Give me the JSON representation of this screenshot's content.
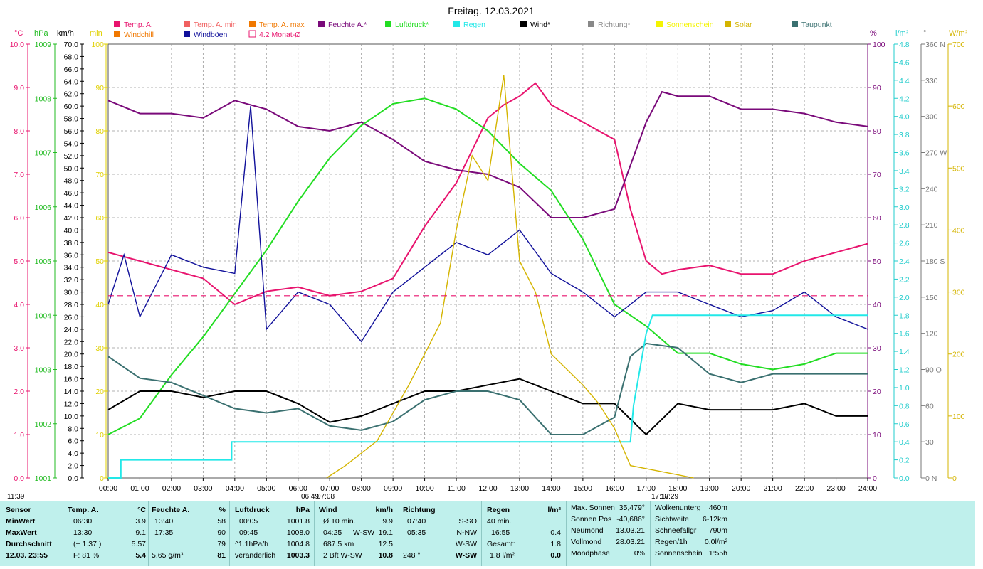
{
  "title": "Freitag. 12.03.2021",
  "legend": [
    {
      "label": "Temp. A.",
      "color": "#e8146e"
    },
    {
      "label": "Temp. A. min",
      "color": "#f06060"
    },
    {
      "label": "Temp. A. max",
      "color": "#f07800"
    },
    {
      "label": "Feuchte A.*",
      "color": "#7a0a7a"
    },
    {
      "label": "Luftdruck*",
      "color": "#22dd22"
    },
    {
      "label": "Regen",
      "color": "#22e8e8"
    },
    {
      "label": "Wind*",
      "color": "#000000"
    },
    {
      "label": "Richtung*",
      "color": "#888888"
    },
    {
      "label": "Sonnenschein",
      "color": "#f4f400"
    },
    {
      "label": "Solar",
      "color": "#d4b400"
    },
    {
      "label": "Taupunkt",
      "color": "#3a7070"
    },
    {
      "label": "Windchill",
      "color": "#f07800"
    },
    {
      "label": "Windböen",
      "color": "#10109a"
    },
    {
      "label": "4.2 Monat-Ø",
      "color": "#e8146e"
    }
  ],
  "units": {
    "temp": "°C",
    "press": "hPa",
    "wind": "km/h",
    "sun": "min",
    "hum": "%",
    "rain": "l/m²",
    "dir": "°",
    "solar": "W/m²"
  },
  "axes": {
    "temp_ticks": [
      "10.0",
      "9.0",
      "8.0",
      "7.0",
      "6.0",
      "5.0",
      "4.0",
      "3.0",
      "2.0",
      "1.0",
      "0.0"
    ],
    "press_ticks": [
      "1009",
      "1008",
      "1007",
      "1006",
      "1005",
      "1004",
      "1003",
      "1002",
      "1001"
    ],
    "wind_ticks": [
      "70.0",
      "68.0",
      "66.0",
      "64.0",
      "62.0",
      "60.0",
      "58.0",
      "56.0",
      "54.0",
      "52.0",
      "50.0",
      "48.0",
      "46.0",
      "44.0",
      "42.0",
      "40.0",
      "38.0",
      "36.0",
      "34.0",
      "32.0",
      "30.0",
      "28.0",
      "26.0",
      "24.0",
      "22.0",
      "20.0",
      "18.0",
      "16.0",
      "14.0",
      "12.0",
      "10.0",
      "8.0",
      "6.0",
      "4.0",
      "2.0",
      "0.0"
    ],
    "sun_ticks": [
      "100",
      "90",
      "80",
      "70",
      "60",
      "50",
      "40",
      "30",
      "20",
      "10",
      "0"
    ],
    "hum_ticks": [
      "100",
      "90",
      "80",
      "70",
      "60",
      "50",
      "40",
      "30",
      "20",
      "10",
      "0"
    ],
    "rain_ticks": [
      "4.8",
      "4.6",
      "4.4",
      "4.2",
      "4.0",
      "3.8",
      "3.6",
      "3.4",
      "3.2",
      "3.0",
      "2.8",
      "2.6",
      "2.4",
      "2.2",
      "2.0",
      "1.8",
      "1.6",
      "1.4",
      "1.2",
      "1.0",
      "0.8",
      "0.6",
      "0.4",
      "0.2",
      "0.0"
    ],
    "dir_ticks": [
      "360 N",
      "330",
      "300",
      "270 W",
      "240",
      "210",
      "180 S",
      "150",
      "120",
      "90 O",
      "60",
      "30",
      "0 N"
    ],
    "solar_ticks": [
      "700",
      "600",
      "500",
      "400",
      "300",
      "200",
      "100",
      "0"
    ],
    "hours": [
      "00:00",
      "01:00",
      "02:00",
      "03:00",
      "04:00",
      "05:00",
      "06:00",
      "07:00",
      "08:00",
      "09:00",
      "10:00",
      "11:00",
      "12:00",
      "13:00",
      "14:00",
      "15:00",
      "16:00",
      "17:00",
      "18:00",
      "19:00",
      "20:00",
      "21:00",
      "22:00",
      "23:00",
      "24:00"
    ],
    "sun_markers": [
      "11:39",
      "06:49",
      "07:08",
      "17:17",
      "18:29"
    ]
  },
  "chart_data": {
    "type": "line",
    "title": "Freitag. 12.03.2021",
    "x_range": [
      "00:00",
      "24:00"
    ],
    "series": [
      {
        "name": "Temp. A.",
        "unit": "°C",
        "ylim": [
          0,
          10
        ],
        "points": [
          [
            0,
            5.2
          ],
          [
            1,
            5.0
          ],
          [
            2,
            4.8
          ],
          [
            3,
            4.6
          ],
          [
            4,
            4.0
          ],
          [
            5,
            4.3
          ],
          [
            6,
            4.4
          ],
          [
            7,
            4.2
          ],
          [
            8,
            4.3
          ],
          [
            9,
            4.6
          ],
          [
            10,
            5.8
          ],
          [
            11,
            6.8
          ],
          [
            12,
            8.3
          ],
          [
            12.5,
            8.6
          ],
          [
            13,
            8.8
          ],
          [
            13.5,
            9.1
          ],
          [
            14,
            8.6
          ],
          [
            15,
            8.2
          ],
          [
            16,
            7.8
          ],
          [
            16.5,
            6.2
          ],
          [
            17,
            5.0
          ],
          [
            17.5,
            4.7
          ],
          [
            18,
            4.8
          ],
          [
            19,
            4.9
          ],
          [
            20,
            4.7
          ],
          [
            21,
            4.7
          ],
          [
            22,
            5.0
          ],
          [
            23,
            5.2
          ],
          [
            24,
            5.4
          ]
        ]
      },
      {
        "name": "Feuchte A.*",
        "unit": "%",
        "ylim": [
          0,
          100
        ],
        "points": [
          [
            0,
            87
          ],
          [
            1,
            84
          ],
          [
            2,
            84
          ],
          [
            3,
            83
          ],
          [
            4,
            87
          ],
          [
            5,
            85
          ],
          [
            6,
            81
          ],
          [
            7,
            80
          ],
          [
            8,
            82
          ],
          [
            9,
            78
          ],
          [
            10,
            73
          ],
          [
            11,
            71
          ],
          [
            12,
            70
          ],
          [
            13,
            67
          ],
          [
            14,
            60
          ],
          [
            15,
            60
          ],
          [
            16,
            62
          ],
          [
            17,
            82
          ],
          [
            17.5,
            89
          ],
          [
            18,
            88
          ],
          [
            19,
            88
          ],
          [
            20,
            85
          ],
          [
            21,
            85
          ],
          [
            22,
            84
          ],
          [
            23,
            82
          ],
          [
            24,
            81
          ]
        ]
      },
      {
        "name": "Luftdruck*",
        "unit": "hPa",
        "ylim": [
          1001,
          1009
        ],
        "points": [
          [
            0,
            1001.8
          ],
          [
            1,
            1002.1
          ],
          [
            2,
            1002.9
          ],
          [
            3,
            1003.6
          ],
          [
            4,
            1004.4
          ],
          [
            5,
            1005.2
          ],
          [
            6,
            1006.1
          ],
          [
            7,
            1006.9
          ],
          [
            8,
            1007.5
          ],
          [
            9,
            1007.9
          ],
          [
            10,
            1008.0
          ],
          [
            11,
            1007.8
          ],
          [
            12,
            1007.4
          ],
          [
            13,
            1006.8
          ],
          [
            14,
            1006.3
          ],
          [
            15,
            1005.4
          ],
          [
            16,
            1004.2
          ],
          [
            16.5,
            1004.0
          ],
          [
            17,
            1003.8
          ],
          [
            18,
            1003.3
          ],
          [
            19,
            1003.3
          ],
          [
            20,
            1003.1
          ],
          [
            21,
            1003.0
          ],
          [
            22,
            1003.1
          ],
          [
            23,
            1003.3
          ],
          [
            24,
            1003.3
          ]
        ]
      },
      {
        "name": "Wind*",
        "unit": "km/h",
        "ylim": [
          0,
          70
        ],
        "points": [
          [
            0,
            11
          ],
          [
            1,
            14
          ],
          [
            2,
            14
          ],
          [
            3,
            13
          ],
          [
            4,
            14
          ],
          [
            5,
            14
          ],
          [
            6,
            12
          ],
          [
            7,
            9
          ],
          [
            8,
            10
          ],
          [
            9,
            12
          ],
          [
            10,
            14
          ],
          [
            11,
            14
          ],
          [
            12,
            15
          ],
          [
            13,
            16
          ],
          [
            14,
            14
          ],
          [
            15,
            12
          ],
          [
            16,
            12
          ],
          [
            17,
            7
          ],
          [
            18,
            12
          ],
          [
            19,
            11
          ],
          [
            20,
            11
          ],
          [
            21,
            11
          ],
          [
            22,
            12
          ],
          [
            23,
            10
          ],
          [
            24,
            10
          ]
        ]
      },
      {
        "name": "Windböen",
        "unit": "km/h",
        "ylim": [
          0,
          70
        ],
        "points": [
          [
            0,
            28
          ],
          [
            0.5,
            36
          ],
          [
            1,
            26
          ],
          [
            2,
            36
          ],
          [
            3,
            34
          ],
          [
            4,
            33
          ],
          [
            4.5,
            60
          ],
          [
            5,
            24
          ],
          [
            6,
            30
          ],
          [
            7,
            28
          ],
          [
            8,
            22
          ],
          [
            9,
            30
          ],
          [
            10,
            34
          ],
          [
            11,
            38
          ],
          [
            12,
            36
          ],
          [
            13,
            40
          ],
          [
            14,
            33
          ],
          [
            15,
            30
          ],
          [
            16,
            26
          ],
          [
            17,
            30
          ],
          [
            18,
            30
          ],
          [
            19,
            28
          ],
          [
            20,
            26
          ],
          [
            21,
            27
          ],
          [
            22,
            30
          ],
          [
            23,
            26
          ],
          [
            24,
            24
          ]
        ]
      },
      {
        "name": "Taupunkt",
        "unit": "°C",
        "ylim": [
          0,
          10
        ],
        "points": [
          [
            0,
            2.8
          ],
          [
            1,
            2.3
          ],
          [
            2,
            2.2
          ],
          [
            3,
            1.9
          ],
          [
            4,
            1.6
          ],
          [
            5,
            1.5
          ],
          [
            6,
            1.6
          ],
          [
            7,
            1.2
          ],
          [
            8,
            1.1
          ],
          [
            9,
            1.3
          ],
          [
            10,
            1.8
          ],
          [
            11,
            2.0
          ],
          [
            12,
            2.0
          ],
          [
            13,
            1.8
          ],
          [
            14,
            1.0
          ],
          [
            15,
            1.0
          ],
          [
            16,
            1.4
          ],
          [
            16.5,
            2.8
          ],
          [
            17,
            3.1
          ],
          [
            18,
            3.0
          ],
          [
            19,
            2.4
          ],
          [
            20,
            2.2
          ],
          [
            21,
            2.4
          ],
          [
            22,
            2.4
          ],
          [
            23,
            2.4
          ],
          [
            24,
            2.4
          ]
        ]
      },
      {
        "name": "Regen",
        "unit": "l/m²",
        "ylim": [
          0,
          4.8
        ],
        "points": [
          [
            0,
            0
          ],
          [
            0.4,
            0
          ],
          [
            0.4,
            0.2
          ],
          [
            3.9,
            0.2
          ],
          [
            3.9,
            0.4
          ],
          [
            16.5,
            0.4
          ],
          [
            16.6,
            0.8
          ],
          [
            17.0,
            1.6
          ],
          [
            17.2,
            1.8
          ],
          [
            24,
            1.8
          ]
        ]
      },
      {
        "name": "Solar",
        "unit": "W/m²",
        "ylim": [
          0,
          700
        ],
        "points": [
          [
            6.9,
            0
          ],
          [
            7.5,
            20
          ],
          [
            8.5,
            60
          ],
          [
            9.5,
            150
          ],
          [
            10.5,
            250
          ],
          [
            11,
            400
          ],
          [
            11.5,
            520
          ],
          [
            12,
            480
          ],
          [
            12.5,
            650
          ],
          [
            13,
            350
          ],
          [
            13.5,
            300
          ],
          [
            14,
            200
          ],
          [
            15,
            150
          ],
          [
            15.5,
            120
          ],
          [
            16,
            80
          ],
          [
            16.5,
            20
          ],
          [
            17,
            15
          ],
          [
            18,
            5
          ],
          [
            18.5,
            0
          ]
        ]
      },
      {
        "name": "4.2 Monat-Ø",
        "unit": "°C",
        "points": [
          [
            0,
            4.2
          ],
          [
            24,
            4.2
          ]
        ]
      }
    ]
  },
  "stats": {
    "sensor": {
      "head": "Sensor",
      "rows": [
        "MinWert",
        "MaxWert",
        "Durchschnitt",
        "12.03. 23:55"
      ]
    },
    "temp": {
      "head": "Temp. A.",
      "unit": "°C",
      "r1a": "06:30",
      "r1b": "3.9",
      "r2a": "13:30",
      "r2b": "9.1",
      "r3a": "(+ 1.37 )",
      "r3b": "5.57",
      "r4a": "F: 81 %",
      "r4b": "5.4"
    },
    "hum": {
      "head": "Feuchte A.",
      "unit": "%",
      "r1a": "13:40",
      "r1b": "58",
      "r2a": "17:35",
      "r2b": "90",
      "r3a": "",
      "r3b": "79",
      "r4a": "5.65 g/m³",
      "r4b": "81"
    },
    "press": {
      "head": "Luftdruck",
      "unit": "hPa",
      "r1a": "00:05",
      "r1b": "1001.8",
      "r2a": "09:45",
      "r2b": "1008.0",
      "r3a": "^1.1hPa/h",
      "r3b": "1004.8",
      "r4a": "veränderlich",
      "r4b": "1003.3"
    },
    "wind": {
      "head": "Wind",
      "unit": "km/h",
      "r1a": "Ø 10 min.",
      "r1b": "9.9",
      "r2a": "04:25",
      "r2m": "W-SW",
      "r2b": "19.1",
      "r3a": "687.5 km",
      "r3b": "12.5",
      "r4a": "2 Bft W-SW",
      "r4b": "10.8"
    },
    "dir": {
      "head": "Richtung",
      "r1a": "07:40",
      "r1b": "S-SO",
      "r2a": "05:35",
      "r2b": "N-NW",
      "r3b": "W-SW",
      "r4a": "248 °",
      "r4b": "W-SW"
    },
    "rain": {
      "head": "Regen",
      "unit": "l/m²",
      "r1a": "40 min.",
      "r1b": "",
      "r2a": "16:55",
      "r2b": "0.4",
      "r3a": "Gesamt:",
      "r3b": "1.8",
      "r4a": "1.8 l/m²",
      "r4b": "0.0"
    },
    "astro": {
      "r1a": "Max. Sonnen",
      "r1b": "35,479°",
      "r2a": "Sonnen Pos",
      "r2b": "-40,686°",
      "r3a": "Neumond",
      "r3b": "13.03.21",
      "r4a": "Vollmond",
      "r4b": "28.03.21",
      "r5a": "Mondphase",
      "r5b": "0%"
    },
    "cloud": {
      "r1a": "Wolkenunterg",
      "r1b": "460m",
      "r2a": "Sichtweite",
      "r2b": "6-12km",
      "r3a": "Schneefallgr",
      "r3b": "790m",
      "r4a": "Regen/1h",
      "r4b": "0.0l/m²",
      "r5a": "Sonnenschein",
      "r5b": "1:55h"
    }
  }
}
